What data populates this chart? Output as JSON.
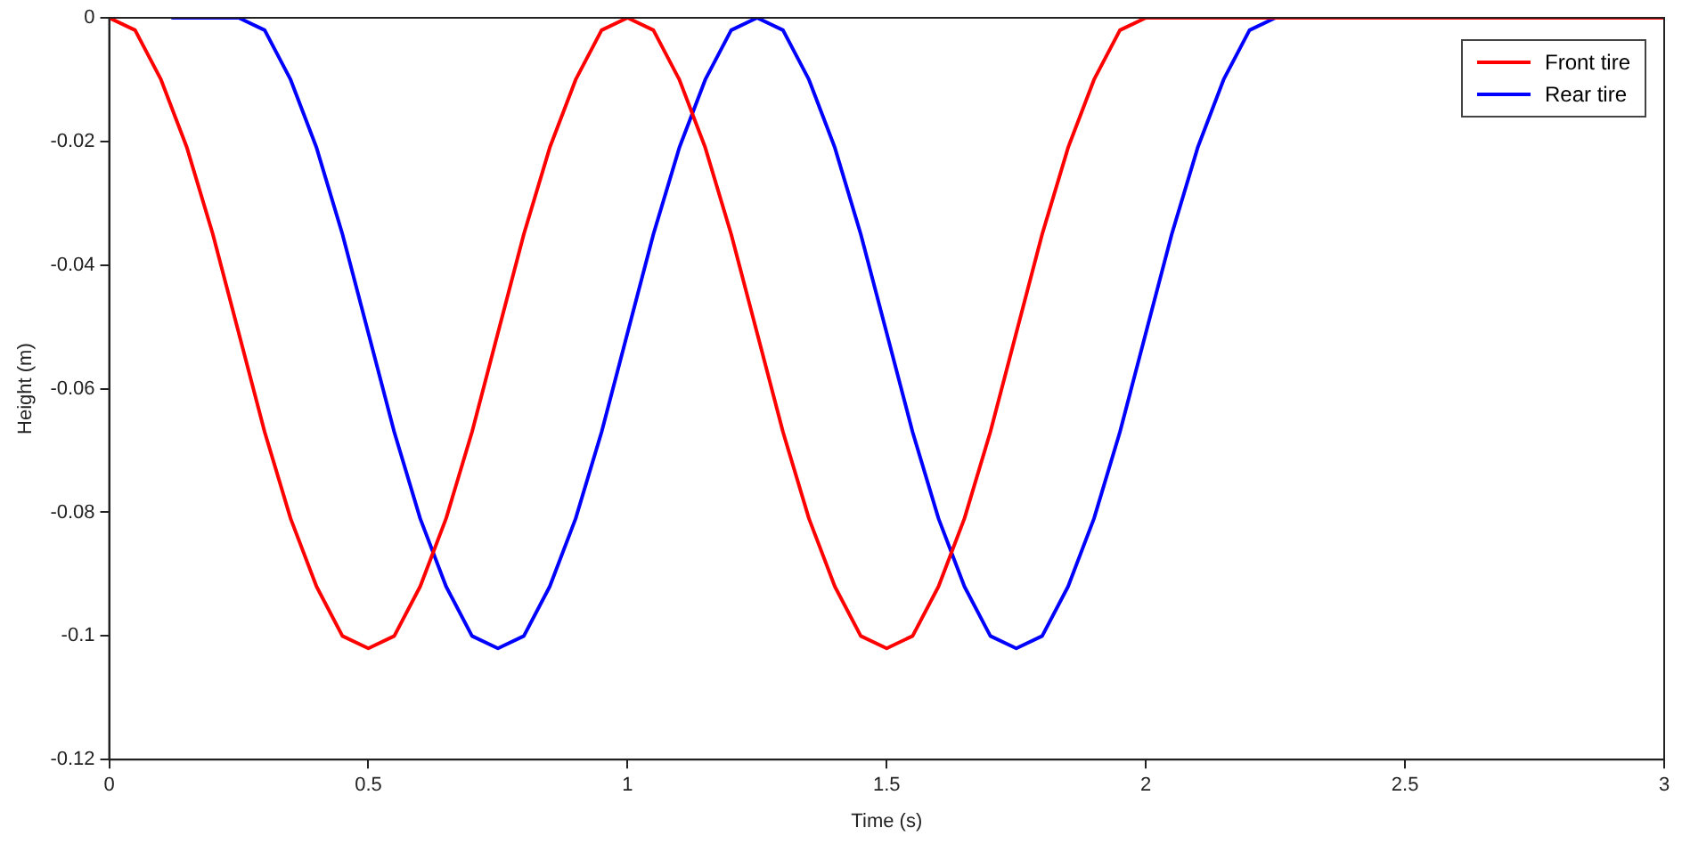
{
  "chart_data": {
    "type": "line",
    "xlabel": "Time (s)",
    "ylabel": "Height (m)",
    "xlim": [
      0,
      3
    ],
    "xticks": [
      0,
      0.5,
      1,
      1.5,
      2,
      2.5,
      3
    ],
    "ylim": [
      -0.12,
      0
    ],
    "yticks": [
      -0.12,
      -0.1,
      -0.08,
      -0.06,
      -0.04,
      -0.02,
      0
    ],
    "grid": false,
    "legend": "top right",
    "marker": "none",
    "line_style": "solid",
    "series": [
      {
        "name": "Front tire",
        "color": "#ff0000",
        "x": [
          0,
          0.05,
          0.1,
          0.15,
          0.2,
          0.25,
          0.3,
          0.35,
          0.4,
          0.45,
          0.5,
          0.55,
          0.6,
          0.65,
          0.7,
          0.75,
          0.8,
          0.85,
          0.9,
          0.95,
          1,
          1.05,
          1.1,
          1.15,
          1.2,
          1.25,
          1.3,
          1.35,
          1.4,
          1.45,
          1.5,
          1.55,
          1.6,
          1.65,
          1.7,
          1.75,
          1.8,
          1.85,
          1.9,
          1.95,
          2,
          3
        ],
        "values": [
          0,
          -0.002,
          -0.01,
          -0.021,
          -0.035,
          -0.051,
          -0.067,
          -0.081,
          -0.092,
          -0.1,
          -0.102,
          -0.1,
          -0.092,
          -0.081,
          -0.067,
          -0.051,
          -0.035,
          -0.021,
          -0.01,
          -0.002,
          0,
          -0.002,
          -0.01,
          -0.021,
          -0.035,
          -0.051,
          -0.067,
          -0.081,
          -0.092,
          -0.1,
          -0.102,
          -0.1,
          -0.092,
          -0.081,
          -0.067,
          -0.051,
          -0.035,
          -0.021,
          -0.01,
          -0.002,
          0,
          0
        ]
      },
      {
        "name": "Rear tire",
        "color": "#0000ff",
        "x": [
          0.12,
          0.25,
          0.3,
          0.35,
          0.4,
          0.45,
          0.5,
          0.55,
          0.6,
          0.65,
          0.7,
          0.75,
          0.8,
          0.85,
          0.9,
          0.95,
          1,
          1.05,
          1.1,
          1.15,
          1.2,
          1.25,
          1.3,
          1.35,
          1.4,
          1.45,
          1.5,
          1.55,
          1.6,
          1.65,
          1.7,
          1.75,
          1.8,
          1.85,
          1.9,
          1.95,
          2,
          2.05,
          2.1,
          2.15,
          2.2,
          2.25,
          3
        ],
        "values": [
          0,
          0,
          -0.002,
          -0.01,
          -0.021,
          -0.035,
          -0.051,
          -0.067,
          -0.081,
          -0.092,
          -0.1,
          -0.102,
          -0.1,
          -0.092,
          -0.081,
          -0.067,
          -0.051,
          -0.035,
          -0.021,
          -0.01,
          -0.002,
          0,
          -0.002,
          -0.01,
          -0.021,
          -0.035,
          -0.051,
          -0.067,
          -0.081,
          -0.092,
          -0.1,
          -0.102,
          -0.1,
          -0.092,
          -0.081,
          -0.067,
          -0.051,
          -0.035,
          -0.021,
          -0.01,
          -0.002,
          0,
          0
        ]
      }
    ]
  }
}
